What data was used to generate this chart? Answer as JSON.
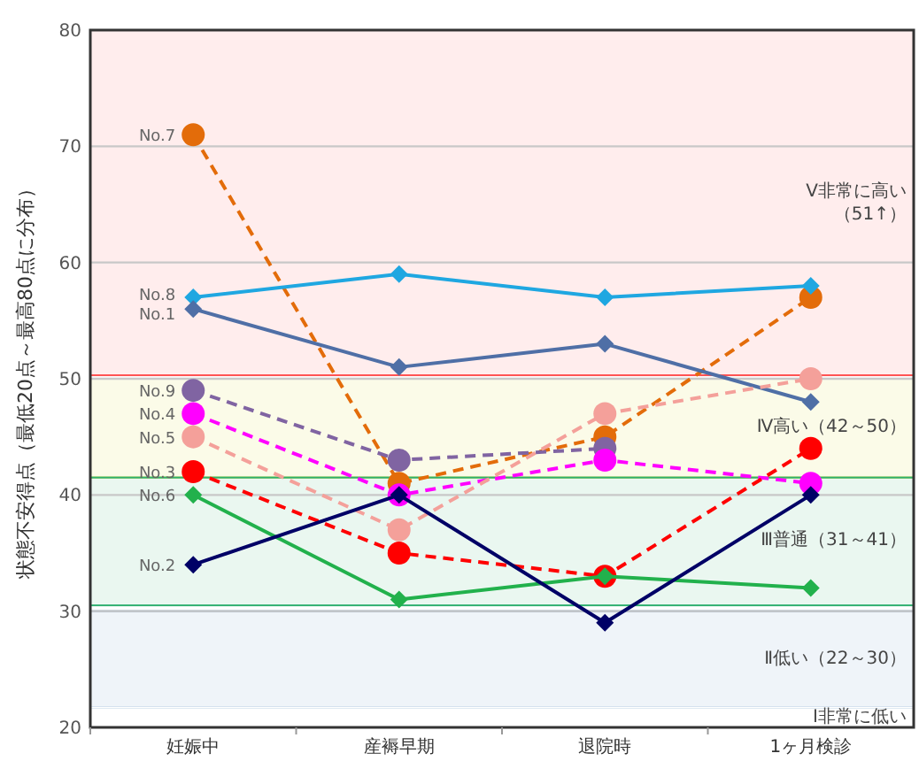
{
  "chart_data": {
    "type": "line",
    "ylabel": "状態不安得点（最低20点～最高80点に分布）",
    "categories": [
      "妊娠中",
      "産褥早期",
      "退院時",
      "1ヶ月検診"
    ],
    "ylim": [
      20,
      80
    ],
    "yticks": [
      20,
      30,
      40,
      50,
      60,
      70,
      80
    ],
    "grid": "y",
    "bands": [
      {
        "axis": "y",
        "from": 50.3,
        "to": 80,
        "label": "Ⅴ非常に高い（51↑）",
        "color": "#ff5050"
      },
      {
        "axis": "y",
        "from": 41.5,
        "to": 50,
        "label": "Ⅳ高い（42～50）",
        "color": "#d8d820"
      },
      {
        "axis": "y",
        "from": 30.5,
        "to": 41.5,
        "label": "Ⅲ普通（31～41）",
        "color": "#30b070"
      },
      {
        "axis": "y",
        "from": 21.7,
        "to": 30,
        "label": "Ⅱ低い（22～30）",
        "color": "#6090c0"
      },
      {
        "axis": "y",
        "from": 20,
        "to": 21.7,
        "label": "Ⅰ非常に低い",
        "color": "#ffffff"
      }
    ],
    "series": [
      {
        "name": "No.7",
        "color": "#e36c0a",
        "marker": "circle",
        "line_style": "dashed",
        "values": [
          71,
          41,
          45,
          57
        ]
      },
      {
        "name": "No.8",
        "color": "#1fa7e1",
        "marker": "diamond",
        "line_style": "solid",
        "values": [
          57,
          59,
          57,
          58
        ]
      },
      {
        "name": "No.1",
        "color": "#4f6fa6",
        "marker": "diamond",
        "line_style": "solid",
        "values": [
          56,
          51,
          53,
          48
        ]
      },
      {
        "name": "No.9",
        "color": "#8064a2",
        "marker": "circle",
        "line_style": "dashed",
        "values": [
          49,
          43,
          44,
          null
        ]
      },
      {
        "name": "No.4",
        "color": "#ff00ff",
        "marker": "circle",
        "line_style": "dashed",
        "values": [
          47,
          40,
          43,
          41
        ]
      },
      {
        "name": "No.5",
        "color": "#f4a09a",
        "marker": "circle",
        "line_style": "dashed",
        "values": [
          45,
          37,
          47,
          50
        ]
      },
      {
        "name": "No.3",
        "color": "#ff0000",
        "marker": "circle",
        "line_style": "dashed",
        "values": [
          42,
          35,
          33,
          44
        ]
      },
      {
        "name": "No.6",
        "color": "#22b14c",
        "marker": "diamond",
        "line_style": "solid",
        "values": [
          40,
          31,
          33,
          32
        ]
      },
      {
        "name": "No.2",
        "color": "#000066",
        "marker": "diamond",
        "line_style": "solid",
        "values": [
          34,
          40,
          29,
          40
        ]
      }
    ]
  }
}
